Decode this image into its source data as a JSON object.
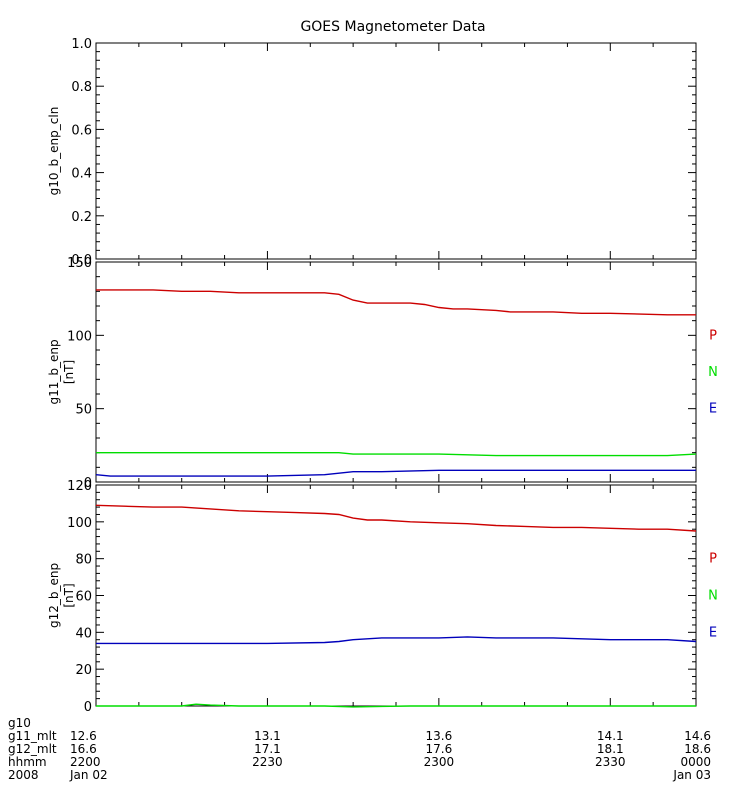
{
  "title": "GOES Magnetometer Data",
  "colors": {
    "P": "#cc0000",
    "N": "#00dd00",
    "E": "#0000bb"
  },
  "chart_data": [
    {
      "type": "line",
      "id": "panel1",
      "ylabel": "g10_b_enp_cln",
      "yunit": "",
      "ylim": [
        0,
        1.0
      ],
      "yticks": [
        "1.0",
        "0.8",
        "0.6",
        "0.4",
        "0.2",
        "0.0"
      ],
      "ytick_values": [
        1.0,
        0.8,
        0.6,
        0.4,
        0.2,
        0.0
      ],
      "series": []
    },
    {
      "type": "line",
      "id": "panel2",
      "ylabel": "g11_b_enp",
      "yunit": "[nT]",
      "ylim": [
        0,
        150
      ],
      "yticks": [
        "150",
        "100",
        "50",
        "0"
      ],
      "ytick_values": [
        150,
        100,
        50,
        0
      ],
      "series": [
        {
          "name": "P",
          "color": "#cc0000",
          "points": [
            [
              0,
              131
            ],
            [
              20,
              131
            ],
            [
              30,
              130
            ],
            [
              40,
              130
            ],
            [
              50,
              129
            ],
            [
              60,
              129
            ],
            [
              80,
              129
            ],
            [
              85,
              128
            ],
            [
              90,
              124
            ],
            [
              95,
              122
            ],
            [
              100,
              122
            ],
            [
              110,
              122
            ],
            [
              115,
              121
            ],
            [
              120,
              119
            ],
            [
              125,
              118
            ],
            [
              130,
              118
            ],
            [
              140,
              117
            ],
            [
              145,
              116
            ],
            [
              150,
              116
            ],
            [
              160,
              116
            ],
            [
              170,
              115
            ],
            [
              180,
              115
            ],
            [
              200,
              114
            ],
            [
              210,
              114
            ]
          ]
        },
        {
          "name": "N",
          "color": "#00dd00",
          "points": [
            [
              0,
              20
            ],
            [
              40,
              20
            ],
            [
              80,
              20
            ],
            [
              85,
              20
            ],
            [
              90,
              19
            ],
            [
              100,
              19
            ],
            [
              120,
              19
            ],
            [
              140,
              18
            ],
            [
              180,
              18
            ],
            [
              200,
              18
            ],
            [
              210,
              19
            ]
          ]
        },
        {
          "name": "E",
          "color": "#0000bb",
          "points": [
            [
              0,
              5
            ],
            [
              5,
              4
            ],
            [
              20,
              4
            ],
            [
              40,
              4
            ],
            [
              60,
              4
            ],
            [
              80,
              5
            ],
            [
              85,
              6
            ],
            [
              90,
              7
            ],
            [
              100,
              7
            ],
            [
              120,
              8
            ],
            [
              140,
              8
            ],
            [
              150,
              8
            ],
            [
              160,
              8
            ],
            [
              180,
              8
            ],
            [
              200,
              8
            ],
            [
              210,
              8
            ]
          ]
        }
      ]
    },
    {
      "type": "line",
      "id": "panel3",
      "ylabel": "g12_b_enp",
      "yunit": "[nT]",
      "ylim": [
        0,
        120
      ],
      "yticks": [
        "120",
        "100",
        "80",
        "60",
        "40",
        "20",
        "0"
      ],
      "ytick_values": [
        120,
        100,
        80,
        60,
        40,
        20,
        0
      ],
      "series": [
        {
          "name": "P",
          "color": "#cc0000",
          "points": [
            [
              0,
              109
            ],
            [
              10,
              108.5
            ],
            [
              20,
              108
            ],
            [
              30,
              108
            ],
            [
              40,
              107
            ],
            [
              50,
              106
            ],
            [
              60,
              105.5
            ],
            [
              70,
              105
            ],
            [
              80,
              104.5
            ],
            [
              85,
              104
            ],
            [
              90,
              102
            ],
            [
              95,
              101
            ],
            [
              100,
              101
            ],
            [
              110,
              100
            ],
            [
              120,
              99.5
            ],
            [
              130,
              99
            ],
            [
              140,
              98
            ],
            [
              150,
              97.5
            ],
            [
              160,
              97
            ],
            [
              170,
              97
            ],
            [
              180,
              96.5
            ],
            [
              190,
              96
            ],
            [
              200,
              96
            ],
            [
              210,
              95
            ]
          ]
        },
        {
          "name": "E",
          "color": "#0000bb",
          "points": [
            [
              0,
              34
            ],
            [
              20,
              34
            ],
            [
              40,
              34
            ],
            [
              60,
              34
            ],
            [
              80,
              34.5
            ],
            [
              85,
              35
            ],
            [
              90,
              36
            ],
            [
              100,
              37
            ],
            [
              110,
              37
            ],
            [
              120,
              37
            ],
            [
              130,
              37.5
            ],
            [
              140,
              37
            ],
            [
              150,
              37
            ],
            [
              160,
              37
            ],
            [
              170,
              36.5
            ],
            [
              180,
              36
            ],
            [
              190,
              36
            ],
            [
              200,
              36
            ],
            [
              210,
              35
            ]
          ]
        },
        {
          "name": "N",
          "color": "#00dd00",
          "points": [
            [
              0,
              0
            ],
            [
              30,
              0
            ],
            [
              35,
              1
            ],
            [
              40,
              0.5
            ],
            [
              50,
              0
            ],
            [
              70,
              0
            ],
            [
              80,
              0
            ],
            [
              90,
              -0.5
            ],
            [
              110,
              0
            ],
            [
              140,
              0
            ],
            [
              180,
              0
            ],
            [
              200,
              0
            ],
            [
              210,
              0
            ]
          ]
        }
      ]
    }
  ],
  "xaxis": {
    "range": [
      0,
      210
    ],
    "tick_values": [
      0,
      60,
      120,
      180,
      210
    ],
    "rows": [
      {
        "label": "g10",
        "values": [
          "",
          "",
          "",
          "",
          ""
        ]
      },
      {
        "label": "g11_mlt",
        "values": [
          "12.6",
          "13.1",
          "13.6",
          "14.1",
          "14.6"
        ]
      },
      {
        "label": "g12_mlt",
        "values": [
          "16.6",
          "17.1",
          "17.6",
          "18.1",
          "18.6"
        ]
      },
      {
        "label": "hhmm",
        "values": [
          "2200",
          "2230",
          "2300",
          "2330",
          "0000"
        ]
      },
      {
        "label": "2008",
        "values": [
          "Jan 02",
          "",
          "",
          "",
          "Jan 03"
        ]
      }
    ]
  },
  "legend": [
    {
      "panel": "panel2",
      "labels": [
        {
          "text": "P",
          "value": 100
        },
        {
          "text": "N",
          "value": 75
        },
        {
          "text": "E",
          "value": 50
        }
      ]
    },
    {
      "panel": "panel3",
      "labels": [
        {
          "text": "P",
          "value": 80
        },
        {
          "text": "N",
          "value": 60
        },
        {
          "text": "E",
          "value": 40
        }
      ]
    }
  ]
}
